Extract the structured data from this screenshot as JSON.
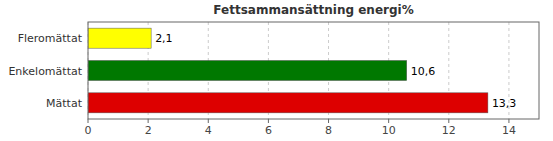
{
  "chart_data": {
    "type": "bar",
    "orientation": "horizontal",
    "title": "Fettsammansättning energi%",
    "categories": [
      "Mättat",
      "Enkelomättat",
      "Fleromättat"
    ],
    "values": [
      13.3,
      10.6,
      2.1
    ],
    "value_labels": [
      "13,3",
      "10,6",
      "2,1"
    ],
    "data_labels": true,
    "colors": [
      "#dd0000",
      "#007800",
      "#ffff00"
    ],
    "xlim": [
      0,
      15
    ],
    "xticks": [
      0,
      2,
      4,
      6,
      8,
      10,
      12,
      14
    ],
    "grid": true
  }
}
